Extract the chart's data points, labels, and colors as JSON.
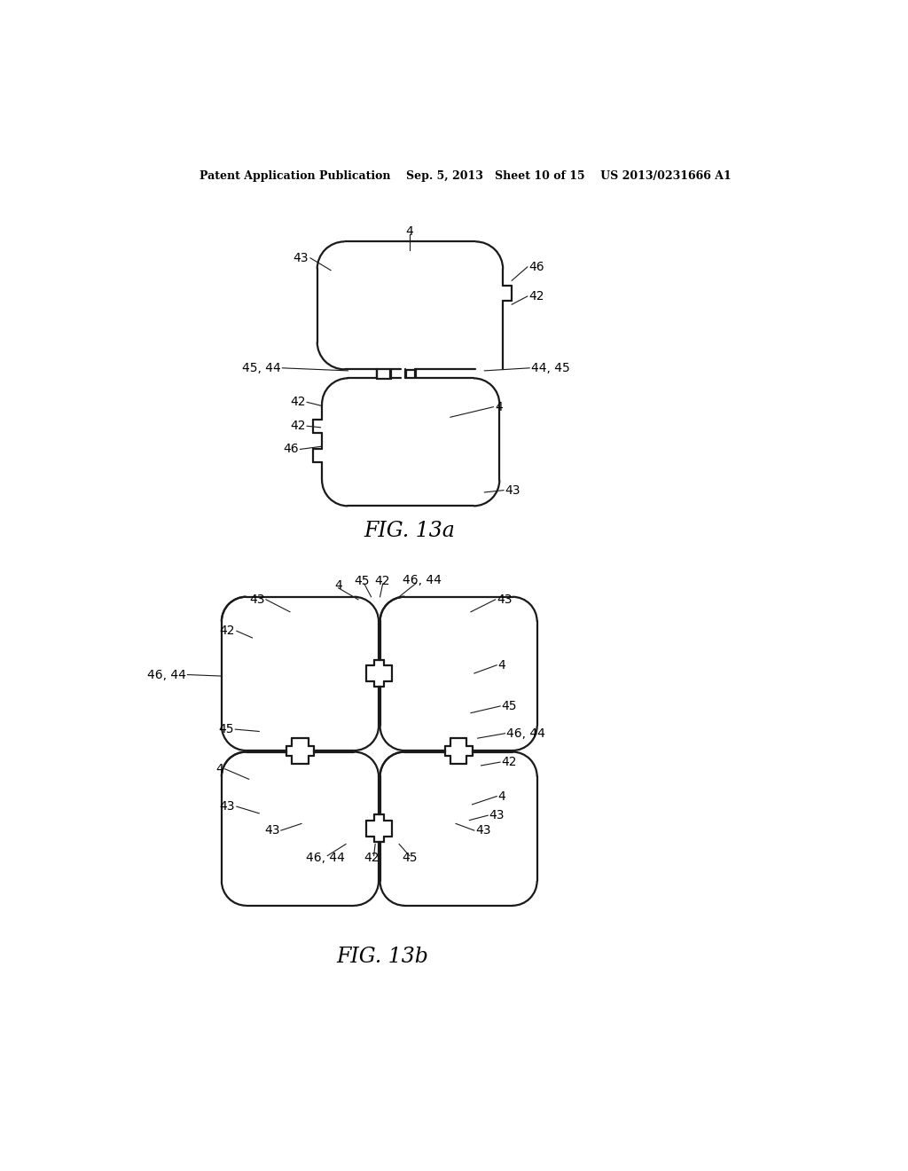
{
  "background_color": "#ffffff",
  "line_color": "#1a1a1a",
  "line_width": 1.6,
  "header_text": "Patent Application Publication    Sep. 5, 2013   Sheet 10 of 15    US 2013/0231666 A1",
  "fig13a_caption": "FIG. 13a",
  "fig13b_caption": "FIG. 13b",
  "header_fontsize": 9,
  "caption_fontsize": 17,
  "label_fontsize": 10
}
